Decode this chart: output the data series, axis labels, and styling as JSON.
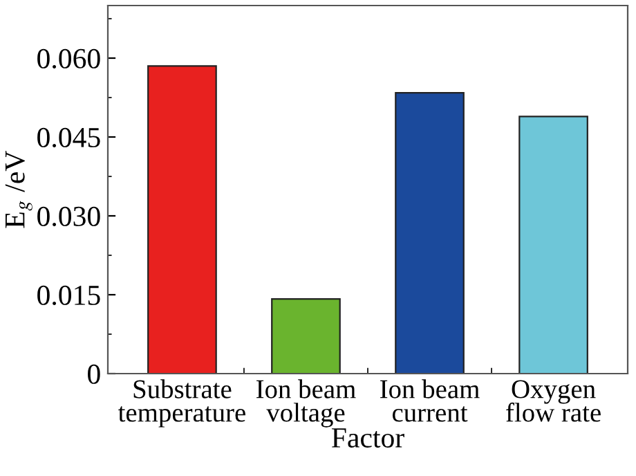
{
  "chart_data": {
    "type": "bar",
    "xlabel": "Factor",
    "ylabel": "E$_{g}$ /eV",
    "categories": [
      "Substrate\ntemperature",
      "Ion beam\nvoltage",
      "Ion beam\ncurrent",
      "Oxygen\nflow rate"
    ],
    "values": [
      0.0585,
      0.0142,
      0.0534,
      0.0489
    ],
    "colors": [
      "#e8211f",
      "#6ab42e",
      "#1b4a9c",
      "#6ec6d8"
    ],
    "ylim": [
      0,
      0.07
    ],
    "yticks": [
      {
        "value": 0,
        "label": "0"
      },
      {
        "value": 0.015,
        "label": "0.015"
      },
      {
        "value": 0.03,
        "label": "0.030"
      },
      {
        "value": 0.045,
        "label": "0.045"
      },
      {
        "value": 0.06,
        "label": "0.060"
      }
    ],
    "grid": false
  }
}
